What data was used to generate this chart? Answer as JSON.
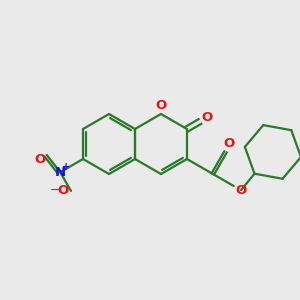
{
  "bg_color": "#eaeaea",
  "bond_color": "#2a7a2a",
  "o_color": "#ee1111",
  "n_color": "#1111ee",
  "lw": 1.6,
  "figsize": [
    3.0,
    3.0
  ],
  "dpi": 100,
  "xlim": [
    0,
    10
  ],
  "ylim": [
    0,
    10
  ]
}
